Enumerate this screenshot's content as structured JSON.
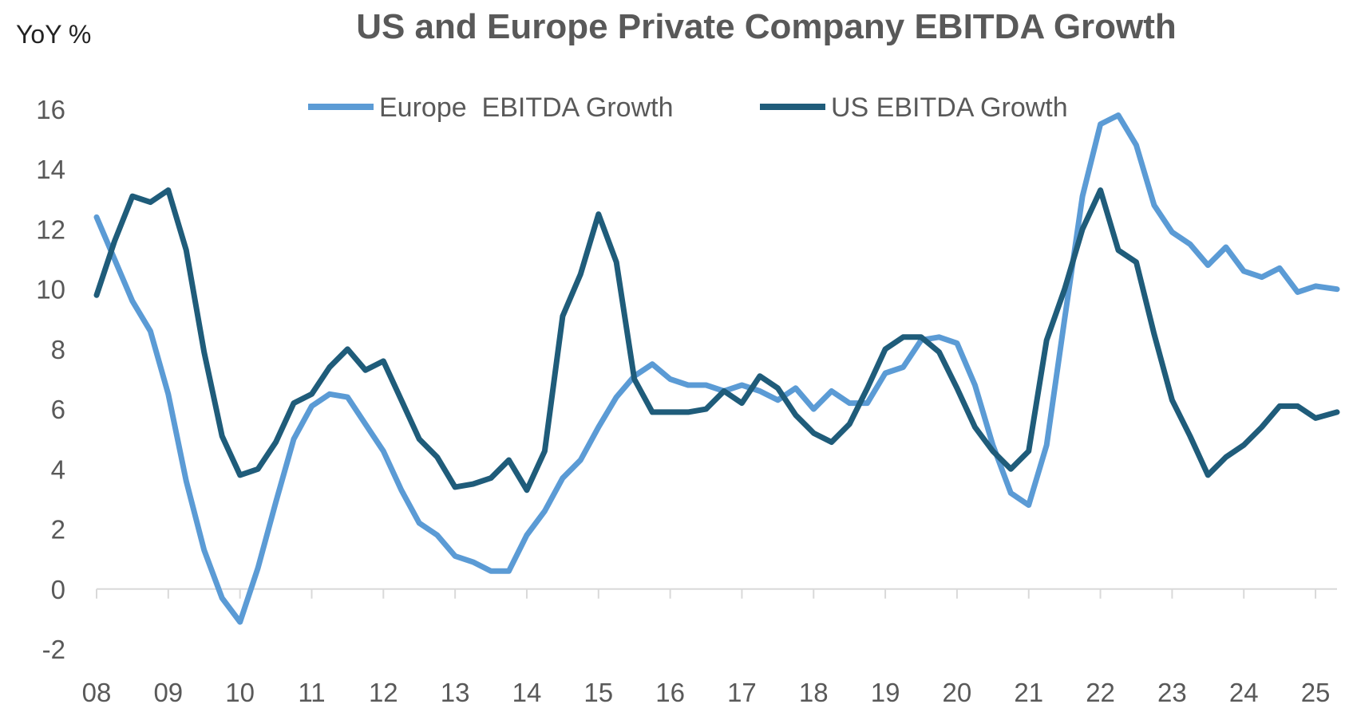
{
  "chart_data": {
    "type": "line",
    "title": "US and Europe Private Company EBITDA Growth",
    "ylabel": "YoY %",
    "xlabel": "",
    "ylim": [
      -2,
      16
    ],
    "yticks": [
      -2,
      0,
      2,
      4,
      6,
      8,
      10,
      12,
      14,
      16
    ],
    "xlim": [
      2008,
      2025.3
    ],
    "xtick_labels": [
      "08",
      "09",
      "10",
      "11",
      "12",
      "13",
      "14",
      "15",
      "16",
      "17",
      "18",
      "19",
      "20",
      "21",
      "22",
      "23",
      "24",
      "25"
    ],
    "legend": "top-center",
    "series": [
      {
        "name": "Europe  EBITDA Growth",
        "color": "#5B9BD5",
        "x": [
          2008.0,
          2008.25,
          2008.5,
          2008.75,
          2009.0,
          2009.25,
          2009.5,
          2009.75,
          2010.0,
          2010.25,
          2010.5,
          2010.75,
          2011.0,
          2011.25,
          2011.5,
          2011.75,
          2012.0,
          2012.25,
          2012.5,
          2012.75,
          2013.0,
          2013.25,
          2013.5,
          2013.75,
          2014.0,
          2014.25,
          2014.5,
          2014.75,
          2015.0,
          2015.25,
          2015.5,
          2015.75,
          2016.0,
          2016.25,
          2016.5,
          2016.75,
          2017.0,
          2017.25,
          2017.5,
          2017.75,
          2018.0,
          2018.25,
          2018.5,
          2018.75,
          2019.0,
          2019.25,
          2019.5,
          2019.75,
          2020.0,
          2020.25,
          2020.5,
          2020.75,
          2021.0,
          2021.25,
          2021.5,
          2021.75,
          2022.0,
          2022.25,
          2022.5,
          2022.75,
          2023.0,
          2023.25,
          2023.5,
          2023.75,
          2024.0,
          2024.25,
          2024.5,
          2024.75,
          2025.0,
          2025.3
        ],
        "values": [
          12.4,
          11.0,
          9.6,
          8.6,
          6.5,
          3.6,
          1.3,
          -0.3,
          -1.1,
          0.7,
          2.9,
          5.0,
          6.1,
          6.5,
          6.4,
          5.5,
          4.6,
          3.3,
          2.2,
          1.8,
          1.1,
          0.9,
          0.6,
          0.6,
          1.8,
          2.6,
          3.7,
          4.3,
          5.4,
          6.4,
          7.1,
          7.5,
          7.0,
          6.8,
          6.8,
          6.6,
          6.8,
          6.6,
          6.3,
          6.7,
          6.0,
          6.6,
          6.2,
          6.2,
          7.2,
          7.4,
          8.3,
          8.4,
          8.2,
          6.8,
          4.8,
          3.2,
          2.8,
          4.8,
          9.0,
          13.1,
          15.5,
          15.8,
          14.8,
          12.8,
          11.9,
          11.5,
          10.8,
          11.4,
          10.6,
          10.4,
          10.7,
          9.9,
          10.1,
          10.0
        ]
      },
      {
        "name": "US EBITDA Growth",
        "color": "#1F5C7A",
        "x": [
          2008.0,
          2008.25,
          2008.5,
          2008.75,
          2009.0,
          2009.25,
          2009.5,
          2009.75,
          2010.0,
          2010.25,
          2010.5,
          2010.75,
          2011.0,
          2011.25,
          2011.5,
          2011.75,
          2012.0,
          2012.25,
          2012.5,
          2012.75,
          2013.0,
          2013.25,
          2013.5,
          2013.75,
          2014.0,
          2014.25,
          2014.5,
          2014.75,
          2015.0,
          2015.25,
          2015.5,
          2015.75,
          2016.0,
          2016.25,
          2016.5,
          2016.75,
          2017.0,
          2017.25,
          2017.5,
          2017.75,
          2018.0,
          2018.25,
          2018.5,
          2018.75,
          2019.0,
          2019.25,
          2019.5,
          2019.75,
          2020.0,
          2020.25,
          2020.5,
          2020.75,
          2021.0,
          2021.25,
          2021.5,
          2021.75,
          2022.0,
          2022.25,
          2022.5,
          2022.75,
          2023.0,
          2023.25,
          2023.5,
          2023.75,
          2024.0,
          2024.25,
          2024.5,
          2024.75,
          2025.0,
          2025.3
        ],
        "values": [
          9.8,
          11.6,
          13.1,
          12.9,
          13.3,
          11.3,
          7.9,
          5.1,
          3.8,
          4.0,
          4.9,
          6.2,
          6.5,
          7.4,
          8.0,
          7.3,
          7.6,
          6.3,
          5.0,
          4.4,
          3.4,
          3.5,
          3.7,
          4.3,
          3.3,
          4.6,
          9.1,
          10.5,
          12.5,
          10.9,
          7.0,
          5.9,
          5.9,
          5.9,
          6.0,
          6.6,
          6.2,
          7.1,
          6.7,
          5.8,
          5.2,
          4.9,
          5.5,
          6.7,
          8.0,
          8.4,
          8.4,
          7.9,
          6.7,
          5.4,
          4.6,
          4.0,
          4.6,
          8.3,
          10.0,
          12.0,
          13.3,
          11.3,
          10.9,
          8.5,
          6.3,
          5.1,
          3.8,
          4.4,
          4.8,
          5.4,
          6.1,
          6.1,
          5.7,
          5.9
        ]
      }
    ]
  }
}
